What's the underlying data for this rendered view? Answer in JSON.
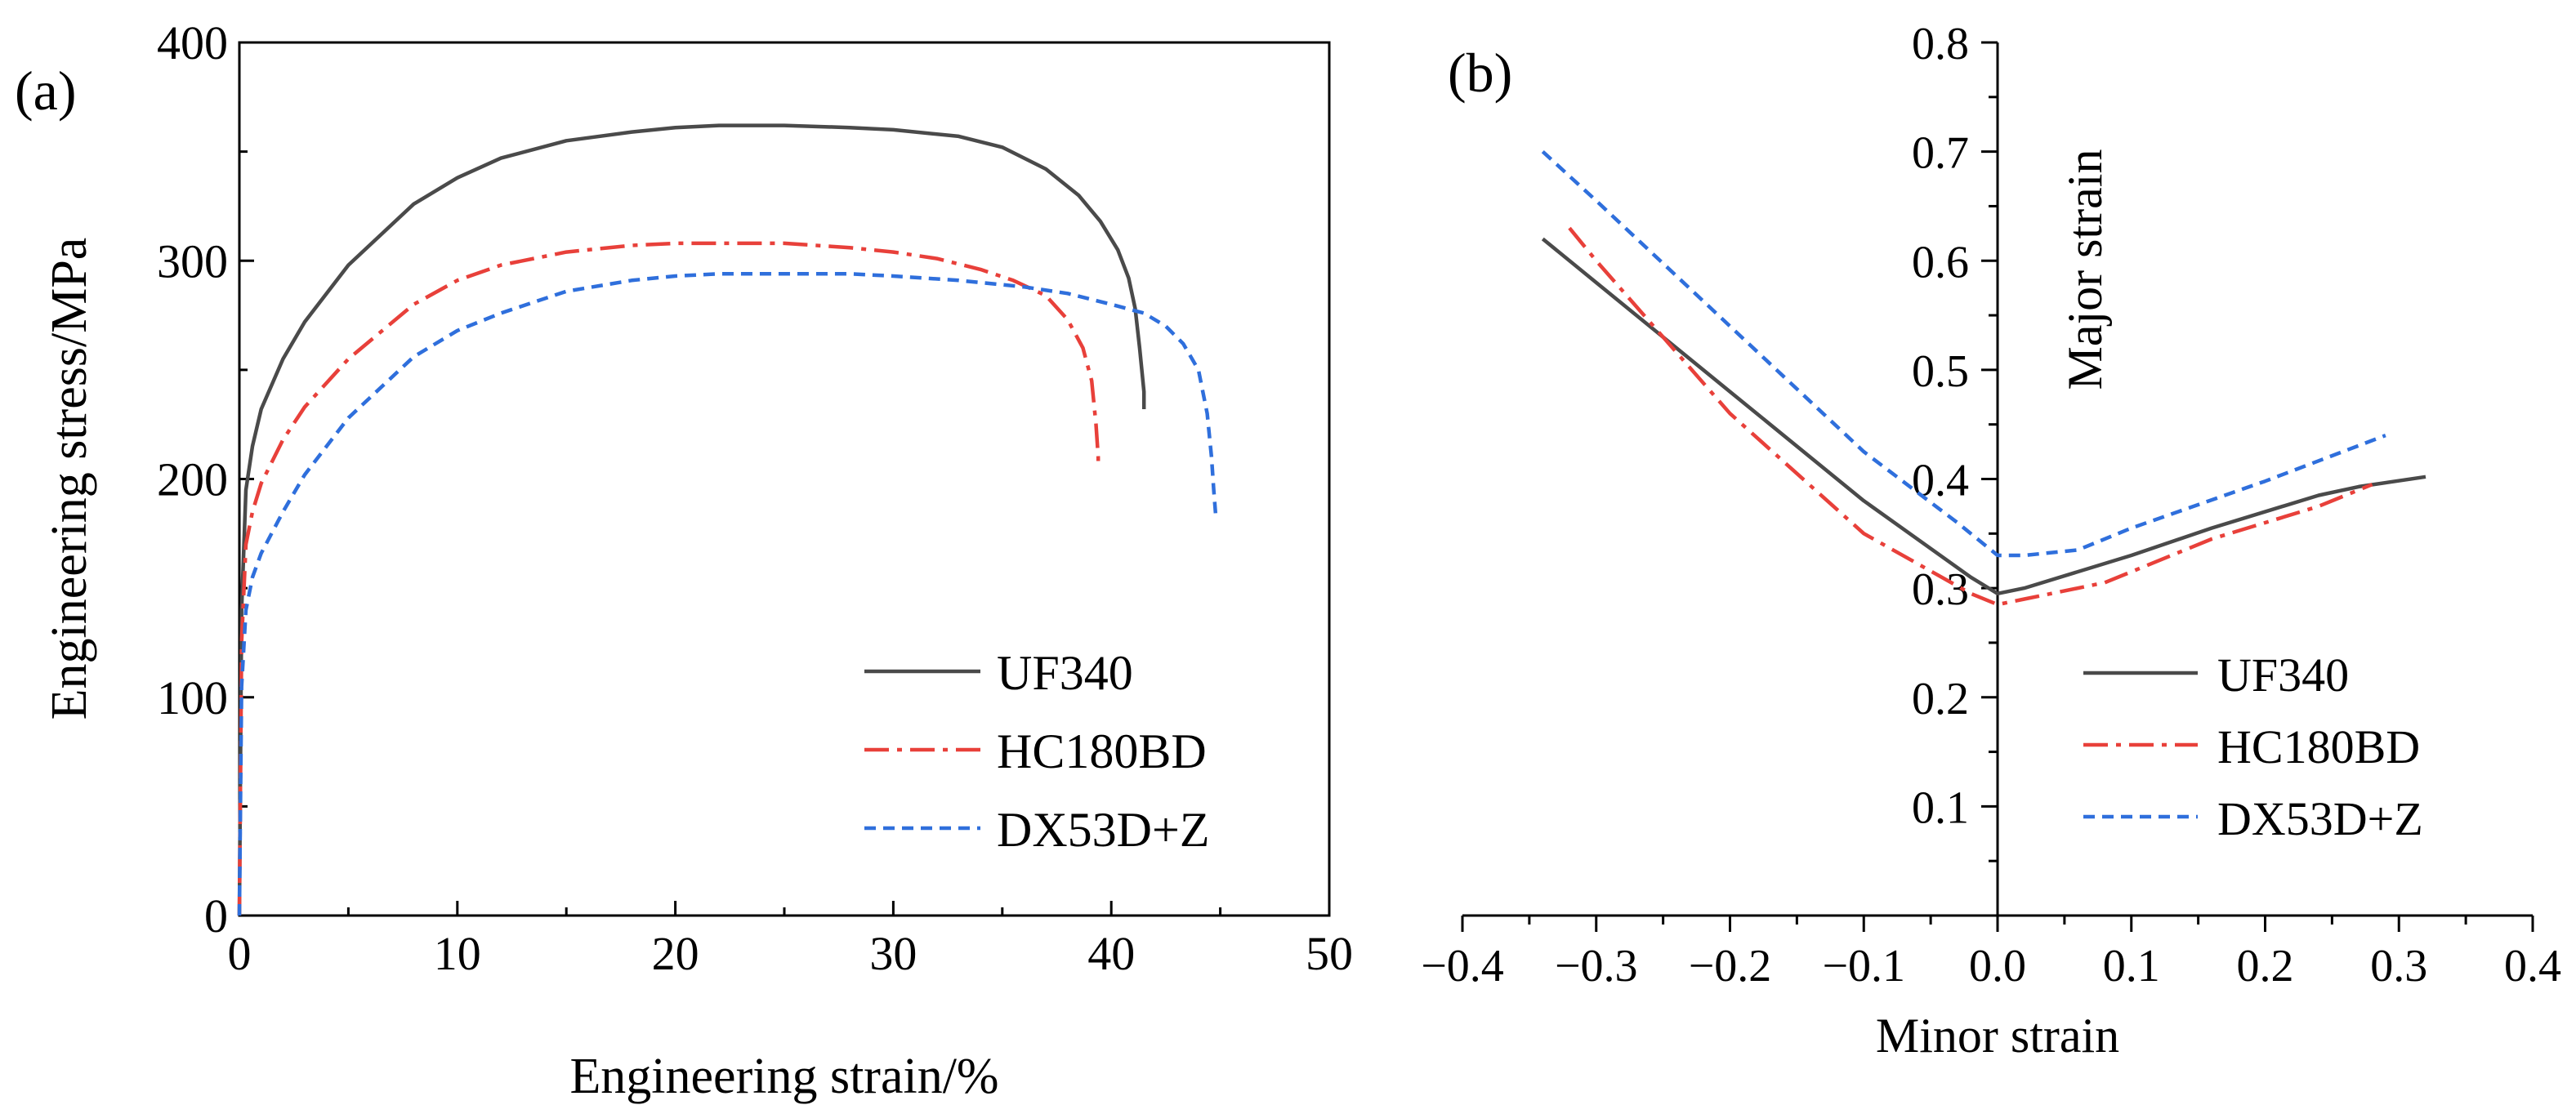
{
  "colors": {
    "uf340": "#4a4a4a",
    "hc180bd": "#e8403a",
    "dx53dz": "#2f6fdc",
    "axis": "#000000"
  },
  "chart_data": [
    {
      "panel": "(a)",
      "type": "line",
      "xlabel": "Engineering strain/%",
      "ylabel": "Engineering stress/MPa",
      "xlim": [
        0,
        50
      ],
      "ylim": [
        0,
        400
      ],
      "xticks": [
        "0",
        "10",
        "20",
        "30",
        "40",
        "50"
      ],
      "yticks": [
        "0",
        "100",
        "200",
        "300",
        "400"
      ],
      "legend_position": "bottom-right",
      "series": [
        {
          "name": "UF340",
          "style": "solid",
          "color": "#4a4a4a",
          "x": [
            0,
            0.1,
            0.3,
            0.6,
            1,
            2,
            3,
            5,
            8,
            10,
            12,
            15,
            18,
            20,
            22,
            25,
            28,
            30,
            33,
            35,
            37,
            38.5,
            39.5,
            40.3,
            40.8,
            41.1,
            41.3,
            41.5,
            41.5
          ],
          "y": [
            0,
            140,
            195,
            215,
            232,
            255,
            272,
            298,
            326,
            338,
            347,
            355,
            359,
            361,
            362,
            362,
            361,
            360,
            357,
            352,
            342,
            330,
            318,
            305,
            292,
            278,
            260,
            240,
            232
          ]
        },
        {
          "name": "HC180BD",
          "style": "dashdot",
          "color": "#e8403a",
          "x": [
            0,
            0.1,
            0.3,
            0.6,
            1,
            2,
            3,
            5,
            8,
            10,
            12,
            15,
            18,
            20,
            22,
            25,
            28,
            30,
            32,
            34,
            35.5,
            37,
            38,
            38.7,
            39.1,
            39.3,
            39.4,
            39.4
          ],
          "y": [
            0,
            125,
            170,
            185,
            198,
            218,
            233,
            255,
            280,
            291,
            298,
            304,
            307,
            308,
            308,
            308,
            306,
            304,
            301,
            296,
            291,
            284,
            273,
            260,
            245,
            225,
            210,
            205
          ]
        },
        {
          "name": "DX53D+Z",
          "style": "dashed",
          "color": "#2f6fdc",
          "x": [
            0,
            0.1,
            0.3,
            0.6,
            1,
            2,
            3,
            5,
            8,
            10,
            12,
            15,
            18,
            20,
            22,
            25,
            28,
            30,
            33,
            36,
            38,
            40,
            41.5,
            42.5,
            43.3,
            44,
            44.4,
            44.6,
            44.7,
            44.8
          ],
          "y": [
            0,
            105,
            140,
            155,
            166,
            185,
            202,
            228,
            256,
            268,
            276,
            286,
            291,
            293,
            294,
            294,
            294,
            293,
            291,
            288,
            285,
            280,
            276,
            270,
            262,
            250,
            230,
            210,
            195,
            182
          ]
        }
      ]
    },
    {
      "panel": "(b)",
      "type": "line",
      "xlabel": "Minor strain",
      "ylabel": "Major strain",
      "xlim": [
        -0.4,
        0.4
      ],
      "ylim": [
        0,
        0.8
      ],
      "xticks": [
        "−0.4",
        "−0.3",
        "−0.2",
        "−0.1",
        "0.0",
        "0.1",
        "0.2",
        "0.3",
        "0.4"
      ],
      "yticks": [
        "0.1",
        "0.2",
        "0.3",
        "0.4",
        "0.5",
        "0.6",
        "0.7",
        "0.8"
      ],
      "legend_position": "bottom-right",
      "series": [
        {
          "name": "UF340",
          "style": "solid",
          "color": "#4a4a4a",
          "x": [
            -0.34,
            -0.3,
            -0.2,
            -0.1,
            -0.02,
            0.0,
            0.02,
            0.1,
            0.16,
            0.24,
            0.27,
            0.32
          ],
          "y": [
            0.62,
            0.58,
            0.48,
            0.38,
            0.31,
            0.295,
            0.3,
            0.33,
            0.355,
            0.385,
            0.393,
            0.402
          ]
        },
        {
          "name": "HC180BD",
          "style": "dashdot",
          "color": "#e8403a",
          "x": [
            -0.32,
            -0.3,
            -0.2,
            -0.1,
            -0.02,
            0.0,
            0.02,
            0.08,
            0.1,
            0.16,
            0.2,
            0.24,
            0.28
          ],
          "y": [
            0.63,
            0.6,
            0.46,
            0.35,
            0.295,
            0.285,
            0.29,
            0.305,
            0.315,
            0.345,
            0.36,
            0.375,
            0.395
          ]
        },
        {
          "name": "DX53D+Z",
          "style": "dashed",
          "color": "#2f6fdc",
          "x": [
            -0.34,
            -0.3,
            -0.2,
            -0.1,
            -0.03,
            0.0,
            0.02,
            0.06,
            0.1,
            0.2,
            0.29
          ],
          "y": [
            0.7,
            0.655,
            0.54,
            0.425,
            0.36,
            0.33,
            0.33,
            0.335,
            0.355,
            0.398,
            0.44
          ]
        }
      ]
    }
  ]
}
